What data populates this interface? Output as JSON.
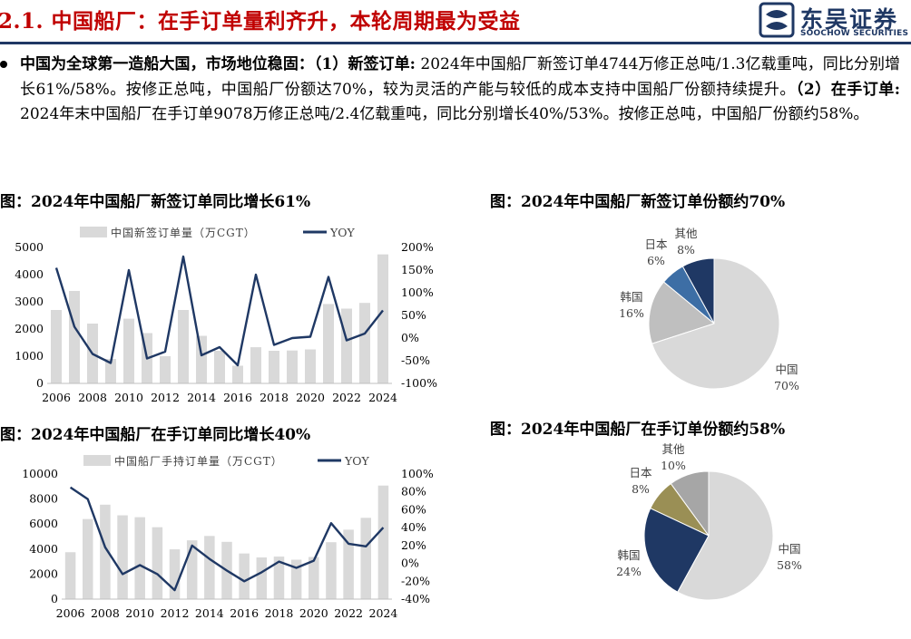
{
  "header": {
    "title": "2.1. 中国船厂：在手订单量利齐升，本轮周期最为受益",
    "logo_name": "东吴证券",
    "logo_sub": "SOOCHOW SECURITIES"
  },
  "intro": {
    "lead": "中国为全球第一造船大国，市场地位稳固：",
    "p1_label": "（1）新签订单:",
    "p1_text": " 2024年中国船厂新签订单4744万修正总吨/1.3亿载重吨，同比分别增长61%/58%。按修正总吨，中国船厂份额达70%，较为灵活的产能与较低的成本支持中国船厂份额持续提升。",
    "p2_label": "（2）在手订单:",
    "p2_text": " 2024年末中国船厂在手订单9078万修正总吨/2.4亿载重吨，同比分别增长40%/53%。按修正总吨，中国船厂份额约58%。"
  },
  "colors": {
    "title_red": "#c00000",
    "navy": "#1f3864",
    "bar_gray": "#d9d9d9",
    "mid_gray": "#bfbfbf",
    "steel_blue": "#3d6ea5",
    "olive": "#9a8f55",
    "pie_gray": "#a6a6a6",
    "light_gray": "#d9d9d9"
  },
  "chart_data": [
    {
      "type": "bar",
      "title": "图：2024年中国船厂新签订单同比增长61%",
      "categories": [
        "2006",
        "2007",
        "2008",
        "2009",
        "2010",
        "2011",
        "2012",
        "2013",
        "2014",
        "2015",
        "2016",
        "2017",
        "2018",
        "2019",
        "2020",
        "2021",
        "2022",
        "2023",
        "2024"
      ],
      "x_ticks": [
        "2006",
        "2008",
        "2010",
        "2012",
        "2014",
        "2016",
        "2018",
        "2020",
        "2022",
        "2024"
      ],
      "series": [
        {
          "name": "中国新签订单量（万CGT）",
          "kind": "bar",
          "axis": "left",
          "values": [
            2700,
            3400,
            2200,
            900,
            2380,
            1850,
            1000,
            2700,
            1750,
            1200,
            650,
            1330,
            1200,
            1210,
            1250,
            2920,
            2750,
            2960,
            4744
          ]
        },
        {
          "name": "YOY",
          "kind": "line",
          "axis": "right",
          "values": [
            155,
            25,
            -35,
            -55,
            150,
            -45,
            -30,
            180,
            -38,
            -20,
            -60,
            140,
            -15,
            0,
            3,
            135,
            -5,
            10,
            61
          ]
        }
      ],
      "left_ticks": [
        "0",
        "1000",
        "2000",
        "3000",
        "4000",
        "5000"
      ],
      "right_ticks": [
        "-100%",
        "-50%",
        "0%",
        "50%",
        "100%",
        "150%",
        "200%"
      ],
      "ylim": [
        0,
        5000
      ],
      "y2lim": [
        -100,
        200
      ]
    },
    {
      "type": "bar",
      "title": "图：2024年中国船厂在手订单同比增长40%",
      "categories": [
        "2006",
        "2007",
        "2008",
        "2009",
        "2010",
        "2011",
        "2012",
        "2013",
        "2014",
        "2015",
        "2016",
        "2017",
        "2018",
        "2019",
        "2020",
        "2021",
        "2022",
        "2023",
        "2024"
      ],
      "x_ticks": [
        "2006",
        "2008",
        "2010",
        "2012",
        "2014",
        "2016",
        "2018",
        "2020",
        "2022",
        "2024"
      ],
      "series": [
        {
          "name": "中国船厂手持订单量（万CGT）",
          "kind": "bar",
          "axis": "left",
          "values": [
            3750,
            6400,
            7550,
            6700,
            6550,
            5750,
            3980,
            4700,
            5050,
            4580,
            3650,
            3330,
            3400,
            3150,
            3370,
            4550,
            5550,
            6500,
            9078
          ]
        },
        {
          "name": "YOY",
          "kind": "line",
          "axis": "right",
          "values": [
            85,
            72,
            18,
            -12,
            -2,
            -12,
            -30,
            20,
            5,
            -8,
            -20,
            -10,
            2,
            -5,
            3,
            45,
            22,
            19,
            40
          ]
        }
      ],
      "left_ticks": [
        "0",
        "2000",
        "4000",
        "6000",
        "8000",
        "10000"
      ],
      "right_ticks": [
        "-40%",
        "-20%",
        "0%",
        "20%",
        "40%",
        "60%",
        "80%",
        "100%"
      ],
      "ylim": [
        0,
        10000
      ],
      "y2lim": [
        -40,
        100
      ]
    },
    {
      "type": "pie",
      "title": "图：2024年中国船厂新签订单份额约70%",
      "slices": [
        {
          "label": "中国",
          "pct": "70%",
          "value": 70
        },
        {
          "label": "韩国",
          "pct": "16%",
          "value": 16
        },
        {
          "label": "日本",
          "pct": "6%",
          "value": 6
        },
        {
          "label": "其他",
          "pct": "8%",
          "value": 8
        }
      ]
    },
    {
      "type": "pie",
      "title": "图：2024年中国船厂在手订单份额约58%",
      "slices": [
        {
          "label": "中国",
          "pct": "58%",
          "value": 58
        },
        {
          "label": "韩国",
          "pct": "24%",
          "value": 24
        },
        {
          "label": "日本",
          "pct": "8%",
          "value": 8
        },
        {
          "label": "其他",
          "pct": "10%",
          "value": 10
        }
      ]
    }
  ]
}
